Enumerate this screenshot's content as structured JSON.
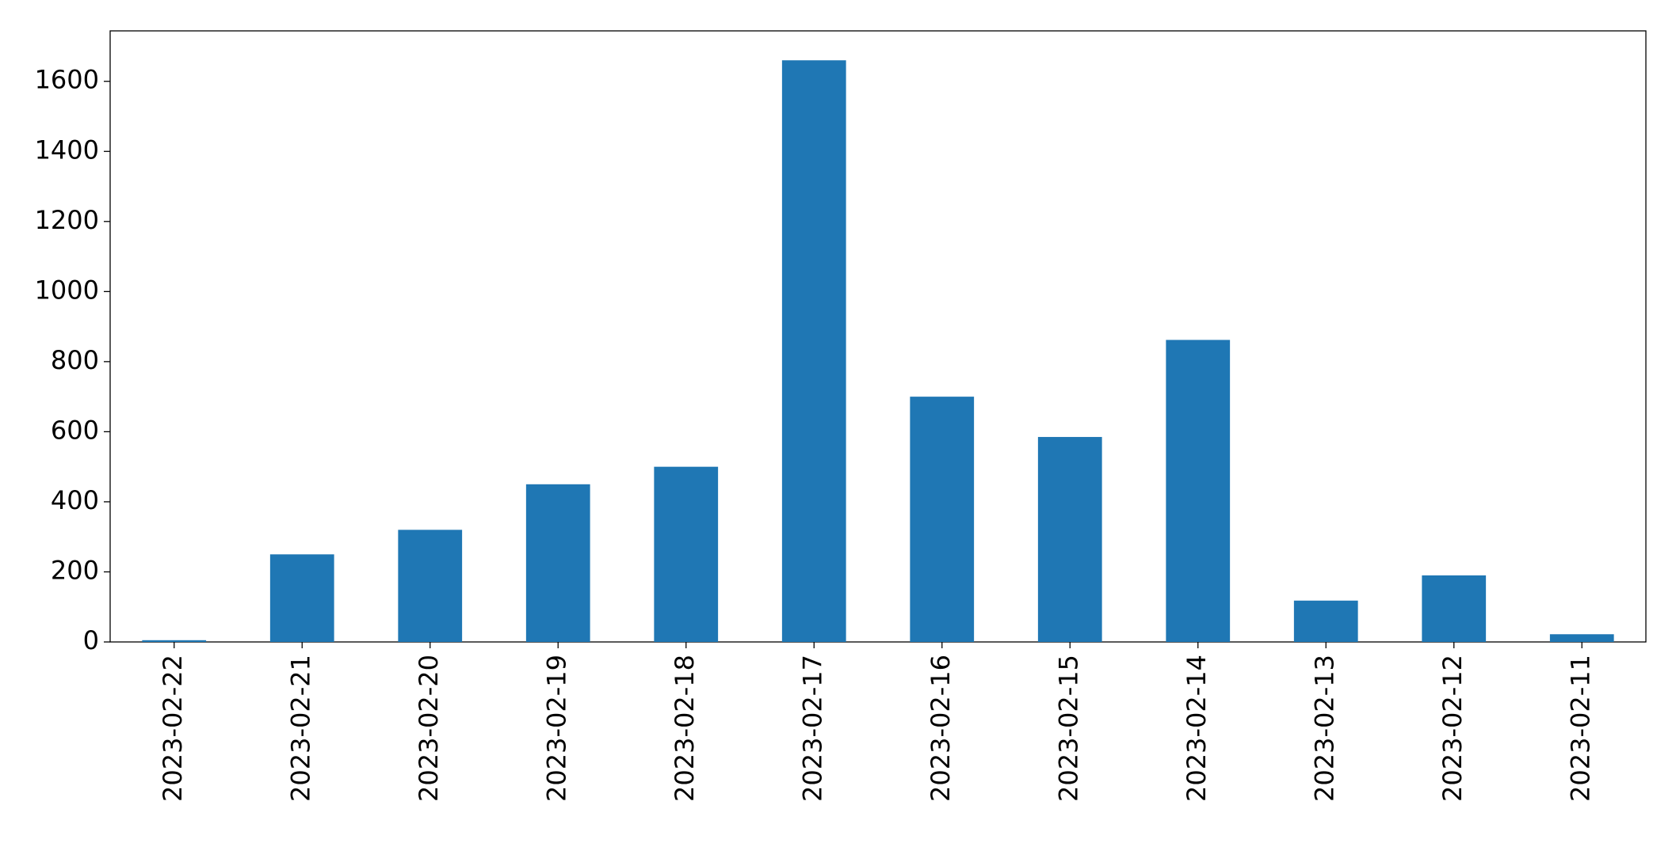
{
  "chart_data": {
    "type": "bar",
    "categories": [
      "2023-02-22",
      "2023-02-21",
      "2023-02-20",
      "2023-02-19",
      "2023-02-18",
      "2023-02-17",
      "2023-02-16",
      "2023-02-15",
      "2023-02-14",
      "2023-02-13",
      "2023-02-12",
      "2023-02-11"
    ],
    "values": [
      5,
      250,
      320,
      450,
      500,
      1660,
      700,
      585,
      862,
      118,
      190,
      22
    ],
    "color": "#1f77b4",
    "ylim": [
      0,
      1744
    ],
    "yticks": [
      0,
      200,
      400,
      600,
      800,
      1000,
      1200,
      1400,
      1600
    ],
    "grid": false
  }
}
